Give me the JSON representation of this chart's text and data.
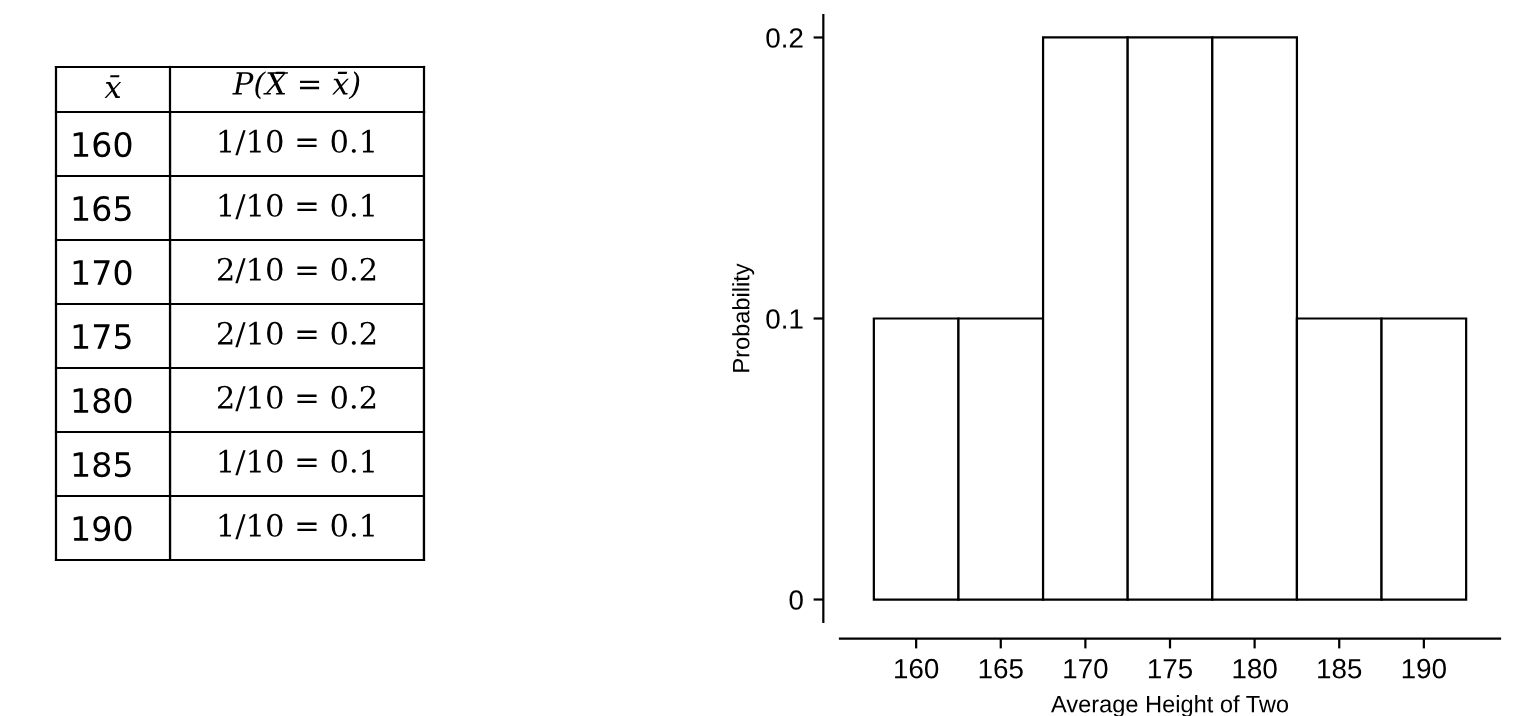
{
  "chart_data": [
    {
      "type": "heatmap",
      "ylabel": "x̄",
      "categories": [
        "P(X̄ = x̄)"
      ],
      "y_categories": [
        "160",
        "165",
        "170",
        "175",
        "180",
        "185",
        "190"
      ],
      "cells": [
        [
          null
        ],
        [
          null
        ],
        [
          null
        ],
        [
          null
        ],
        [
          null
        ],
        [
          null
        ],
        [
          null
        ]
      ],
      "cell_labels": [
        [
          "1/10 = 0.1"
        ],
        [
          "1/10 = 0.1"
        ],
        [
          "2/10 = 0.2"
        ],
        [
          "2/10 = 0.2"
        ],
        [
          "2/10 = 0.2"
        ],
        [
          "1/10 = 0.1"
        ],
        [
          "1/10 = 0.1"
        ]
      ]
    },
    {
      "type": "histogram",
      "bins": [
        157.5,
        162.5,
        167.5,
        172.5,
        177.5,
        182.5,
        187.5,
        192.5
      ],
      "values": [
        0.1,
        0.1,
        0.2,
        0.2,
        0.2,
        0.1,
        0.1
      ],
      "color": "#ffffff",
      "xlabel": "Average Height of Two",
      "ylabel": "Probability",
      "xlim": [
        155.5,
        194.5
      ],
      "ylim": [
        -0.008,
        0.208
      ],
      "xticks": [
        160,
        165,
        170,
        175,
        180,
        185,
        190
      ],
      "yticks": [
        0,
        0.1,
        0.2
      ],
      "grid": false
    }
  ]
}
